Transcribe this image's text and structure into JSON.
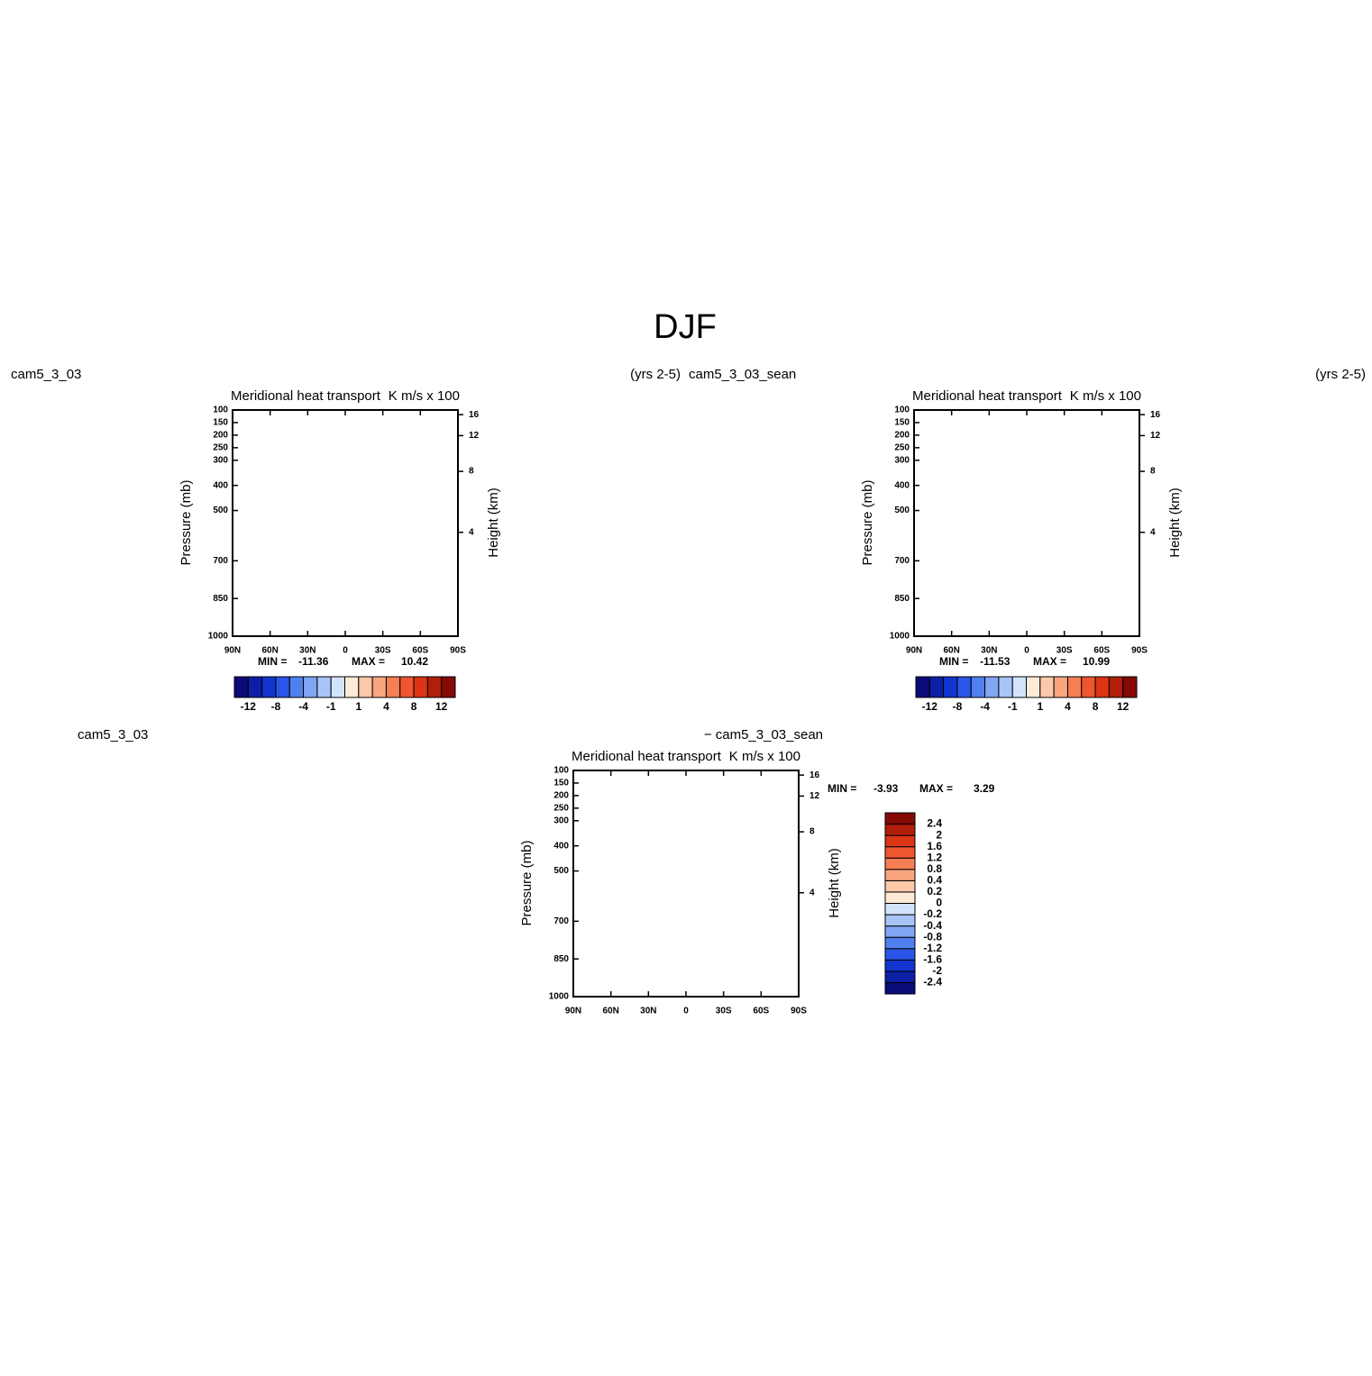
{
  "title": "DJF",
  "chart_data": [
    {
      "type": "contour",
      "left_string": "cam5_3_03",
      "right_string": "(yrs 2-5)",
      "center_title": "Meridional heat transport",
      "units": "K m/s x 100",
      "ylabel": "Pressure (mb)",
      "y2label": "Height (km)",
      "ylim": [
        1000,
        100
      ],
      "yticks": [
        100,
        150,
        200,
        250,
        300,
        400,
        500,
        700,
        850,
        1000
      ],
      "y2ticks": [
        4,
        8,
        12,
        16
      ],
      "xlim": [
        90,
        -90
      ],
      "xticks": [
        {
          "value": 90,
          "label": "90N"
        },
        {
          "value": 60,
          "label": "60N"
        },
        {
          "value": 30,
          "label": "30N"
        },
        0,
        {
          "value": -30,
          "label": "30S"
        },
        {
          "value": -60,
          "label": "60S"
        },
        {
          "value": -90,
          "label": "90S"
        }
      ],
      "min_label": "MIN =",
      "min": -11.36,
      "max_label": "MAX =",
      "max": 10.42,
      "colorbar": {
        "orientation": "horizontal",
        "colors": [
          "#0a0a78",
          "#0c1fa6",
          "#1235d0",
          "#2a55e8",
          "#5080f0",
          "#80a6f4",
          "#a8c4f8",
          "#d2e4fb",
          "#fdebd8",
          "#fcc8a8",
          "#f9a580",
          "#f57e55",
          "#ee5630",
          "#dc3515",
          "#b01f0a",
          "#850a05"
        ],
        "ticks": [
          -12,
          -8,
          -4,
          -1,
          1,
          4,
          8,
          12
        ]
      }
    },
    {
      "type": "contour",
      "left_string": "cam5_3_03_sean",
      "right_string": "(yrs 2-5)",
      "center_title": "Meridional heat transport",
      "units": "K m/s x 100",
      "ylabel": "Pressure (mb)",
      "y2label": "Height (km)",
      "ylim": [
        1000,
        100
      ],
      "yticks": [
        100,
        150,
        200,
        250,
        300,
        400,
        500,
        700,
        850,
        1000
      ],
      "y2ticks": [
        4,
        8,
        12,
        16
      ],
      "xlim": [
        90,
        -90
      ],
      "xticks": [
        {
          "value": 90,
          "label": "90N"
        },
        {
          "value": 60,
          "label": "60N"
        },
        {
          "value": 30,
          "label": "30N"
        },
        0,
        {
          "value": -30,
          "label": "30S"
        },
        {
          "value": -60,
          "label": "60S"
        },
        {
          "value": -90,
          "label": "90S"
        }
      ],
      "min_label": "MIN =",
      "min": -11.53,
      "max_label": "MAX =",
      "max": 10.99,
      "colorbar": {
        "orientation": "horizontal",
        "colors": [
          "#0a0a78",
          "#0c1fa6",
          "#1235d0",
          "#2a55e8",
          "#5080f0",
          "#80a6f4",
          "#a8c4f8",
          "#d2e4fb",
          "#fdebd8",
          "#fcc8a8",
          "#f9a580",
          "#f57e55",
          "#ee5630",
          "#dc3515",
          "#b01f0a",
          "#850a05"
        ],
        "ticks": [
          -12,
          -8,
          -4,
          -1,
          1,
          4,
          8,
          12
        ]
      }
    },
    {
      "type": "contour",
      "left_string": "cam5_3_03",
      "right_string": "− cam5_3_03_sean",
      "center_title": "Meridional heat transport",
      "units": "K m/s x 100",
      "ylabel": "Pressure (mb)",
      "y2label": "Height (km)",
      "ylim": [
        1000,
        100
      ],
      "yticks": [
        100,
        150,
        200,
        250,
        300,
        400,
        500,
        700,
        850,
        1000
      ],
      "y2ticks": [
        4,
        8,
        12,
        16
      ],
      "xlim": [
        90,
        -90
      ],
      "xticks": [
        {
          "value": 90,
          "label": "90N"
        },
        {
          "value": 60,
          "label": "60N"
        },
        {
          "value": 30,
          "label": "30N"
        },
        0,
        {
          "value": -30,
          "label": "30S"
        },
        {
          "value": -60,
          "label": "60S"
        },
        {
          "value": -90,
          "label": "90S"
        }
      ],
      "min_label": "MIN =",
      "min": -3.93,
      "max_label": "MAX =",
      "max": 3.29,
      "colorbar": {
        "orientation": "vertical",
        "colors": [
          "#0a0a78",
          "#0c1fa6",
          "#1235d0",
          "#2a55e8",
          "#5080f0",
          "#80a6f4",
          "#a8c4f8",
          "#d2e4fb",
          "#fdebd8",
          "#fcc8a8",
          "#f9a580",
          "#f57e55",
          "#ee5630",
          "#dc3515",
          "#b01f0a",
          "#850a05"
        ],
        "ticks": [
          -2.4,
          -2,
          -1.6,
          -1.2,
          -0.8,
          -0.4,
          -0.2,
          0,
          0.2,
          0.4,
          0.8,
          1.2,
          1.6,
          2,
          2.4
        ]
      }
    }
  ]
}
